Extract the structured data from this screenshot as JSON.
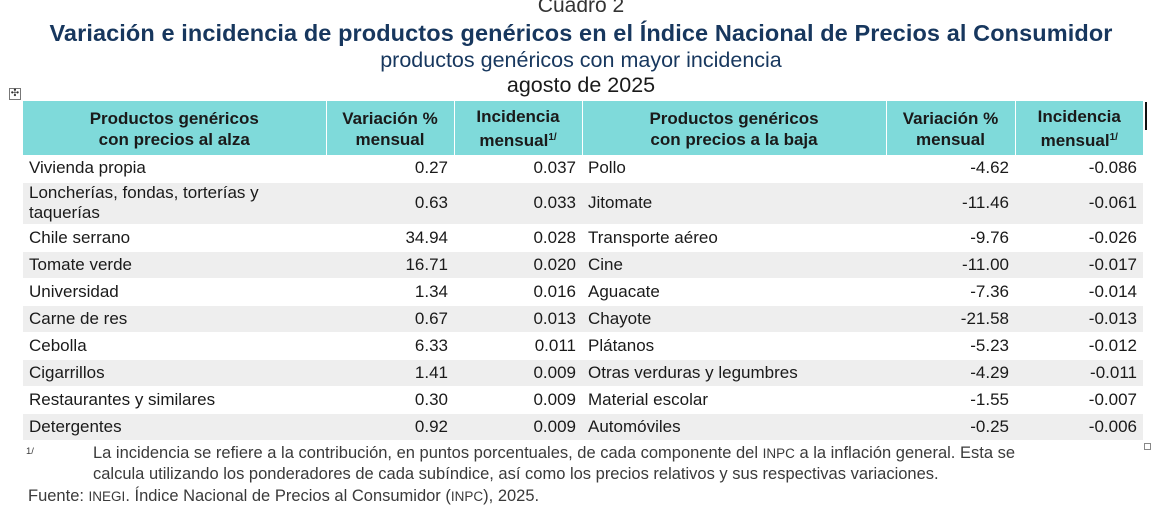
{
  "header": {
    "cuadro": "Cuadro 2",
    "title": "Variación e incidencia de productos genéricos en el Índice Nacional de Precios al Consumidor",
    "subtitle": "productos genéricos con mayor incidencia",
    "date": "agosto de 2025"
  },
  "table": {
    "columns": {
      "up_name_line1": "Productos genéricos",
      "up_name_line2": "con precios al alza",
      "up_var_line1": "Variación %",
      "up_var_line2": "mensual",
      "up_inc_line1": "Incidencia",
      "up_inc_line2": "mensual",
      "up_inc_sup": "1/",
      "down_name_line1": "Productos genéricos",
      "down_name_line2": "con precios a la baja",
      "down_var_line1": "Variación %",
      "down_var_line2": "mensual",
      "down_inc_line1": "Incidencia",
      "down_inc_line2": "mensual",
      "down_inc_sup": "1/"
    },
    "rows": [
      {
        "up_name": "Vivienda propia",
        "up_var": "0.27",
        "up_inc": "0.037",
        "down_name": "Pollo",
        "down_var": "-4.62",
        "down_inc": "-0.086"
      },
      {
        "up_name": "Loncherías, fondas, torterías y taquerías",
        "up_var": "0.63",
        "up_inc": "0.033",
        "down_name": "Jitomate",
        "down_var": "-11.46",
        "down_inc": "-0.061"
      },
      {
        "up_name": "Chile serrano",
        "up_var": "34.94",
        "up_inc": "0.028",
        "down_name": "Transporte aéreo",
        "down_var": "-9.76",
        "down_inc": "-0.026"
      },
      {
        "up_name": "Tomate verde",
        "up_var": "16.71",
        "up_inc": "0.020",
        "down_name": "Cine",
        "down_var": "-11.00",
        "down_inc": "-0.017"
      },
      {
        "up_name": "Universidad",
        "up_var": "1.34",
        "up_inc": "0.016",
        "down_name": "Aguacate",
        "down_var": "-7.36",
        "down_inc": "-0.014"
      },
      {
        "up_name": "Carne de res",
        "up_var": "0.67",
        "up_inc": "0.013",
        "down_name": "Chayote",
        "down_var": "-21.58",
        "down_inc": "-0.013"
      },
      {
        "up_name": "Cebolla",
        "up_var": "6.33",
        "up_inc": "0.011",
        "down_name": "Plátanos",
        "down_var": "-5.23",
        "down_inc": "-0.012"
      },
      {
        "up_name": "Cigarrillos",
        "up_var": "1.41",
        "up_inc": "0.009",
        "down_name": "Otras verduras y legumbres",
        "down_var": "-4.29",
        "down_inc": "-0.011"
      },
      {
        "up_name": "Restaurantes y similares",
        "up_var": "0.30",
        "up_inc": "0.009",
        "down_name": "Material escolar",
        "down_var": "-1.55",
        "down_inc": "-0.007"
      },
      {
        "up_name": "Detergentes",
        "up_var": "0.92",
        "up_inc": "0.009",
        "down_name": "Automóviles",
        "down_var": "-0.25",
        "down_inc": "-0.006"
      }
    ]
  },
  "footnote": {
    "mark": "1/",
    "line1_a": "La incidencia se refiere a la contribución, en puntos porcentuales, de cada componente del ",
    "line1_sc": "INPC",
    "line1_b": " a la inflación general. Esta se",
    "line2": "calcula utilizando los ponderadores de cada subíndice, así como los precios relativos y sus respectivas variaciones."
  },
  "source": {
    "prefix": "Fuente: ",
    "org": "INEGI",
    "middle": ". Índice Nacional de Precios al Consumidor (",
    "abbr": "INPC",
    "suffix": "), 2025."
  },
  "icons": {
    "move_handle": "move-icon"
  }
}
